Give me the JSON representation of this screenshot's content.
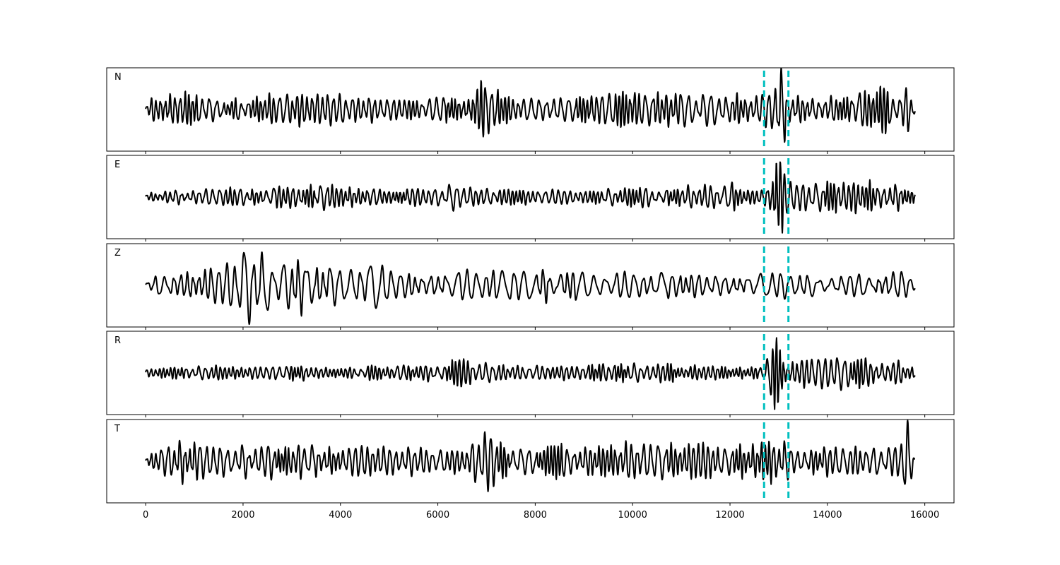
{
  "chart_data": {
    "type": "line",
    "xlim": [
      -800,
      16600
    ],
    "x_ticks": [
      0,
      2000,
      4000,
      6000,
      8000,
      10000,
      12000,
      14000,
      16000
    ],
    "x_tick_labels": [
      "0",
      "2000",
      "4000",
      "6000",
      "8000",
      "10000",
      "12000",
      "14000",
      "16000"
    ],
    "y_ticks_visible": false,
    "grid": false,
    "line_color": "#000000",
    "marker_color": "#00bfbf",
    "markers": [
      12700,
      13200
    ],
    "panels": [
      {
        "label": "N",
        "ylim": [
          -1,
          1
        ],
        "x": [
          0,
          250,
          600,
          950,
          1300,
          1700,
          2100,
          2500,
          2900,
          3250,
          3600,
          3900,
          4300,
          4700,
          5100,
          5500,
          5900,
          6300,
          6600,
          6800,
          6900,
          7000,
          7100,
          7300,
          7700,
          8100,
          8500,
          8900,
          9300,
          9700,
          9950,
          10100,
          10400,
          10800,
          11200,
          11500,
          11900,
          12300,
          12600,
          12750,
          12850,
          12950,
          13050,
          13150,
          13400,
          13800,
          14200,
          14600,
          14900,
          15100,
          15300,
          15500,
          15650,
          15720,
          15800
        ],
        "amp": [
          0.1,
          0.35,
          0.4,
          0.4,
          0.3,
          0.2,
          0.25,
          0.3,
          0.3,
          0.45,
          0.3,
          0.3,
          0.3,
          0.3,
          0.25,
          0.2,
          0.25,
          0.3,
          0.35,
          0.55,
          0.55,
          0.7,
          0.55,
          0.3,
          0.25,
          0.3,
          0.3,
          0.3,
          0.35,
          0.35,
          0.5,
          0.35,
          0.4,
          0.35,
          0.3,
          0.3,
          0.35,
          0.3,
          0.3,
          0.35,
          0.45,
          0.85,
          0.9,
          0.6,
          0.25,
          0.3,
          0.35,
          0.4,
          0.45,
          0.55,
          0.35,
          0.25,
          0.55,
          0.3,
          0.15
        ],
        "period": 115,
        "seed": 11
      },
      {
        "label": "E",
        "ylim": [
          -1,
          1
        ],
        "x": [
          0,
          400,
          900,
          1400,
          1800,
          2200,
          2600,
          3000,
          3400,
          3800,
          4200,
          4600,
          5000,
          5400,
          5800,
          6200,
          6400,
          6600,
          7000,
          7400,
          7800,
          8200,
          8600,
          9000,
          9400,
          9800,
          10200,
          10600,
          11000,
          11400,
          11800,
          12100,
          12400,
          12700,
          12850,
          12950,
          13050,
          13150,
          13300,
          13600,
          14000,
          14400,
          14600,
          14900,
          15200,
          15500,
          15800
        ],
        "amp": [
          0.1,
          0.12,
          0.15,
          0.2,
          0.18,
          0.15,
          0.2,
          0.25,
          0.25,
          0.25,
          0.2,
          0.2,
          0.15,
          0.2,
          0.15,
          0.25,
          0.3,
          0.2,
          0.2,
          0.15,
          0.15,
          0.15,
          0.15,
          0.15,
          0.2,
          0.2,
          0.2,
          0.2,
          0.2,
          0.25,
          0.25,
          0.3,
          0.15,
          0.15,
          0.5,
          0.95,
          0.75,
          0.35,
          0.25,
          0.3,
          0.35,
          0.3,
          0.4,
          0.35,
          0.3,
          0.3,
          0.2
        ],
        "period": 110,
        "seed": 23
      },
      {
        "label": "Z",
        "ylim": [
          -1,
          1
        ],
        "x": [
          0,
          300,
          700,
          1100,
          1500,
          1800,
          2000,
          2300,
          2600,
          2900,
          3100,
          3300,
          3500,
          3800,
          4200,
          4600,
          4800,
          5100,
          5500,
          5900,
          6300,
          6700,
          7100,
          7500,
          7900,
          8300,
          8700,
          9100,
          9500,
          9900,
          10300,
          10700,
          11100,
          11500,
          11900,
          12300,
          12700,
          13100,
          13500,
          13900,
          14300,
          14700,
          15100,
          15500,
          15800
        ],
        "amp": [
          0.1,
          0.3,
          0.3,
          0.3,
          0.35,
          0.5,
          0.75,
          0.7,
          0.5,
          0.45,
          0.6,
          0.9,
          0.5,
          0.45,
          0.4,
          0.45,
          0.5,
          0.3,
          0.3,
          0.3,
          0.3,
          0.3,
          0.3,
          0.3,
          0.3,
          0.35,
          0.3,
          0.25,
          0.25,
          0.25,
          0.25,
          0.25,
          0.25,
          0.25,
          0.25,
          0.25,
          0.25,
          0.25,
          0.25,
          0.25,
          0.25,
          0.25,
          0.3,
          0.3,
          0.1
        ],
        "period": 190,
        "seed": 37
      },
      {
        "label": "R",
        "ylim": [
          -1,
          1
        ],
        "x": [
          0,
          500,
          1000,
          1500,
          2000,
          2500,
          3000,
          3500,
          4000,
          4500,
          5000,
          5500,
          6000,
          6400,
          6800,
          7200,
          7600,
          8000,
          8400,
          8800,
          9200,
          9600,
          10000,
          10400,
          10800,
          11200,
          11600,
          12000,
          12400,
          12700,
          12850,
          12950,
          13050,
          13150,
          13300,
          13600,
          13900,
          14200,
          14500,
          14800,
          15100,
          15400,
          15800
        ],
        "amp": [
          0.1,
          0.12,
          0.12,
          0.15,
          0.12,
          0.15,
          0.18,
          0.15,
          0.12,
          0.15,
          0.15,
          0.15,
          0.2,
          0.3,
          0.22,
          0.2,
          0.15,
          0.15,
          0.15,
          0.15,
          0.18,
          0.18,
          0.18,
          0.18,
          0.18,
          0.15,
          0.15,
          0.15,
          0.12,
          0.12,
          0.45,
          0.8,
          0.55,
          0.3,
          0.3,
          0.3,
          0.3,
          0.3,
          0.35,
          0.3,
          0.25,
          0.25,
          0.15
        ],
        "period": 110,
        "seed": 53
      },
      {
        "label": "T",
        "ylim": [
          -1,
          1
        ],
        "x": [
          0,
          300,
          700,
          1100,
          1500,
          1800,
          2200,
          2600,
          3000,
          3400,
          3800,
          4200,
          4600,
          5000,
          5400,
          5800,
          6200,
          6600,
          6800,
          7000,
          7200,
          7500,
          7900,
          8300,
          8700,
          9100,
          9500,
          9900,
          10300,
          10700,
          11100,
          11500,
          11900,
          12300,
          12700,
          13000,
          13150,
          13300,
          13700,
          14100,
          14500,
          14900,
          15200,
          15500,
          15650,
          15700,
          15800
        ],
        "amp": [
          0.1,
          0.35,
          0.45,
          0.4,
          0.4,
          0.35,
          0.3,
          0.35,
          0.35,
          0.4,
          0.35,
          0.3,
          0.35,
          0.3,
          0.3,
          0.25,
          0.25,
          0.3,
          0.45,
          0.65,
          0.45,
          0.3,
          0.3,
          0.35,
          0.3,
          0.3,
          0.35,
          0.45,
          0.45,
          0.4,
          0.35,
          0.35,
          0.3,
          0.35,
          0.4,
          0.45,
          0.45,
          0.3,
          0.3,
          0.3,
          0.3,
          0.3,
          0.35,
          0.3,
          0.85,
          0.4,
          0.15
        ],
        "period": 112,
        "seed": 71
      }
    ]
  }
}
